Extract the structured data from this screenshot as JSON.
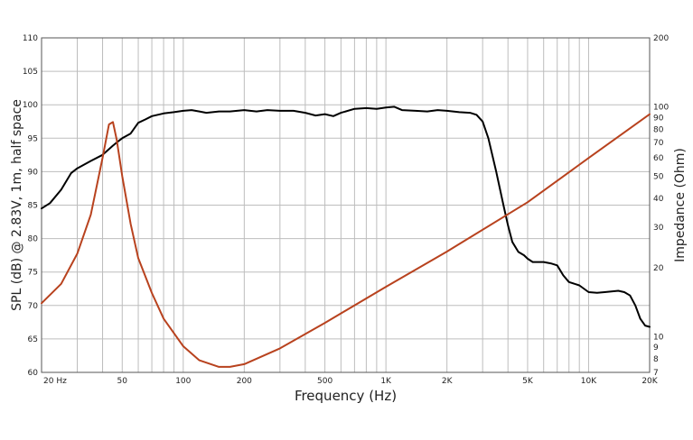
{
  "chart_data": {
    "type": "line",
    "title": "",
    "xlabel": "Frequency (Hz)",
    "ylabel": "SPL (dB) @ 2.83V, 1m, half space",
    "y2label": "Impedance (Ohm)",
    "xscale": "log",
    "xlim": [
      20,
      20000
    ],
    "ylim": [
      60,
      110
    ],
    "y2scale": "log",
    "y2lim": [
      7,
      200
    ],
    "grid": true,
    "x_ticks": [
      {
        "value": 20,
        "label": "20  Hz"
      },
      {
        "value": 50,
        "label": "50"
      },
      {
        "value": 100,
        "label": "100"
      },
      {
        "value": 200,
        "label": "200"
      },
      {
        "value": 500,
        "label": "500"
      },
      {
        "value": 1000,
        "label": "1K"
      },
      {
        "value": 2000,
        "label": "2K"
      },
      {
        "value": 5000,
        "label": "5K"
      },
      {
        "value": 10000,
        "label": "10K"
      },
      {
        "value": 20000,
        "label": "20K"
      }
    ],
    "y_ticks": [
      {
        "value": 60,
        "label": "60"
      },
      {
        "value": 65,
        "label": "65"
      },
      {
        "value": 70,
        "label": "70"
      },
      {
        "value": 75,
        "label": "75"
      },
      {
        "value": 80,
        "label": "80"
      },
      {
        "value": 85,
        "label": "85"
      },
      {
        "value": 90,
        "label": "90"
      },
      {
        "value": 95,
        "label": "95"
      },
      {
        "value": 100,
        "label": "100"
      },
      {
        "value": 105,
        "label": "105"
      },
      {
        "value": 110,
        "label": "110"
      }
    ],
    "y2_ticks": [
      {
        "value": 7,
        "label": "7"
      },
      {
        "value": 8,
        "label": "8"
      },
      {
        "value": 9,
        "label": "9"
      },
      {
        "value": 10,
        "label": "10"
      },
      {
        "value": 20,
        "label": "20"
      },
      {
        "value": 30,
        "label": "30"
      },
      {
        "value": 40,
        "label": "40"
      },
      {
        "value": 50,
        "label": "50"
      },
      {
        "value": 60,
        "label": "60"
      },
      {
        "value": 70,
        "label": "70"
      },
      {
        "value": 80,
        "label": "80"
      },
      {
        "value": 90,
        "label": "90"
      },
      {
        "value": 100,
        "label": "100"
      },
      {
        "value": 200,
        "label": "200"
      }
    ],
    "colors": {
      "spl": "#000000",
      "impedance": "#b8421e",
      "grid": "#bdbdbd",
      "frame": "#555555"
    },
    "series": [
      {
        "axis": "left",
        "x": [
          20,
          22,
          25,
          28,
          30,
          35,
          40,
          45,
          48,
          50,
          55,
          60,
          65,
          70,
          80,
          90,
          100,
          110,
          120,
          130,
          150,
          170,
          200,
          230,
          260,
          300,
          350,
          400,
          450,
          500,
          550,
          600,
          700,
          800,
          900,
          1000,
          1100,
          1200,
          1400,
          1600,
          1800,
          2000,
          2300,
          2600,
          2800,
          3000,
          3200,
          3500,
          3800,
          4000,
          4200,
          4500,
          4800,
          5000,
          5300,
          5600,
          6000,
          6500,
          7000,
          7500,
          8000,
          9000,
          10000,
          11000,
          12000,
          14000,
          15000,
          16000,
          17000,
          18000,
          19000,
          20000
        ],
        "values": [
          84.5,
          85.3,
          87.3,
          89.8,
          90.5,
          91.6,
          92.5,
          93.9,
          94.6,
          95,
          95.7,
          97.3,
          97.8,
          98.3,
          98.7,
          98.9,
          99.1,
          99.2,
          99,
          98.8,
          99,
          99,
          99.2,
          99,
          99.2,
          99.1,
          99.1,
          98.8,
          98.4,
          98.6,
          98.3,
          98.8,
          99.4,
          99.5,
          99.4,
          99.6,
          99.7,
          99.2,
          99.1,
          99,
          99.2,
          99.1,
          98.9,
          98.8,
          98.5,
          97.5,
          95,
          90,
          85,
          82,
          79.5,
          78,
          77.5,
          77,
          76.5,
          76.5,
          76.5,
          76.3,
          76,
          74.5,
          73.5,
          73,
          72,
          71.9,
          72,
          72.2,
          72,
          71.5,
          70,
          68,
          67,
          66.8
        ]
      },
      {
        "axis": "right",
        "x": [
          20,
          25,
          30,
          35,
          40,
          43,
          45,
          47,
          50,
          55,
          60,
          70,
          80,
          100,
          120,
          150,
          170,
          200,
          300,
          500,
          1000,
          2000,
          5000,
          10000,
          20000
        ],
        "values": [
          14,
          17,
          23,
          34,
          60,
          84,
          86,
          72,
          50,
          31,
          22,
          15.5,
          12,
          9.1,
          7.9,
          7.4,
          7.4,
          7.6,
          8.9,
          11.5,
          16.5,
          23.5,
          38.5,
          60,
          93
        ]
      }
    ]
  }
}
